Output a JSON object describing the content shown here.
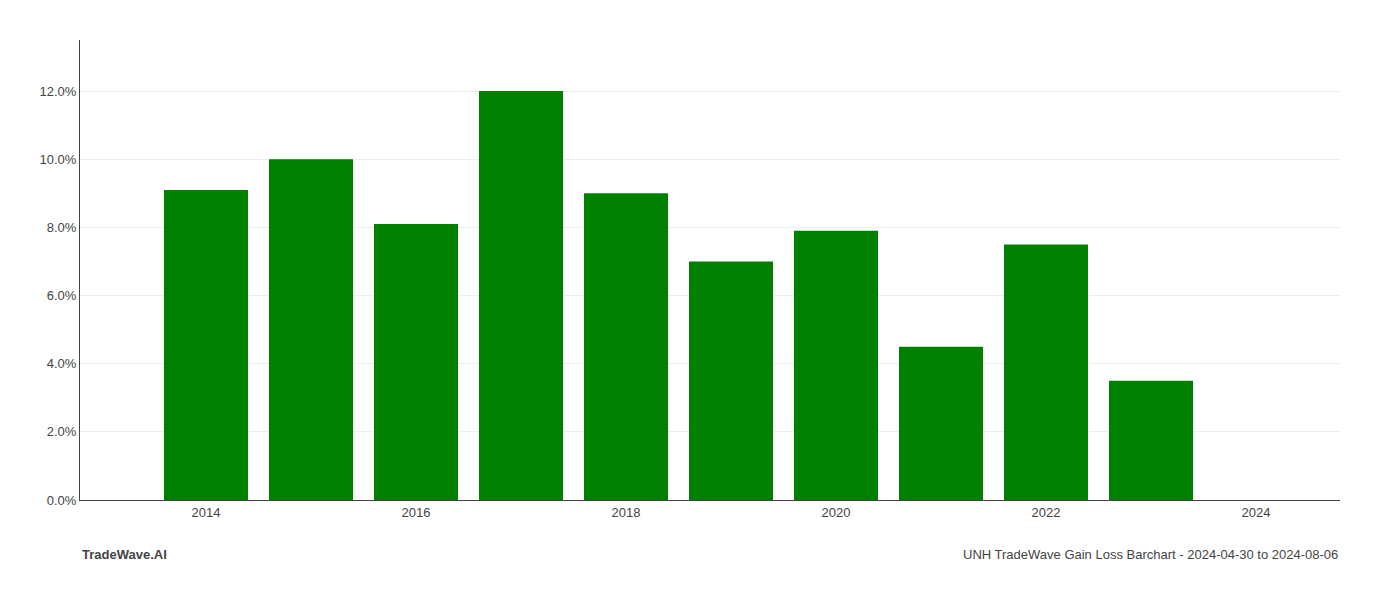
{
  "chart_data": {
    "type": "bar",
    "x": [
      2014,
      2015,
      2016,
      2017,
      2018,
      2019,
      2020,
      2021,
      2022,
      2023
    ],
    "values": [
      0.091,
      0.1,
      0.081,
      0.12,
      0.09,
      0.07,
      0.079,
      0.045,
      0.075,
      0.035
    ],
    "color": "#008000",
    "xlim": [
      2012.8,
      2024.8
    ],
    "xticks": [
      2014,
      2016,
      2018,
      2020,
      2022,
      2024
    ],
    "ylim": [
      0,
      0.135
    ],
    "yticks": [
      {
        "value": 0.0,
        "label": "0.0%"
      },
      {
        "value": 0.02,
        "label": "2.0%"
      },
      {
        "value": 0.04,
        "label": "4.0%"
      },
      {
        "value": 0.06,
        "label": "6.0%"
      },
      {
        "value": 0.08,
        "label": "8.0%"
      },
      {
        "value": 0.1,
        "label": "10.0%"
      },
      {
        "value": 0.12,
        "label": "12.0%"
      }
    ],
    "grid": true,
    "annotations": [
      "TradeWave.AI",
      "UNH TradeWave Gain Loss Barchart - 2024-04-30 to 2024-08-06"
    ]
  }
}
